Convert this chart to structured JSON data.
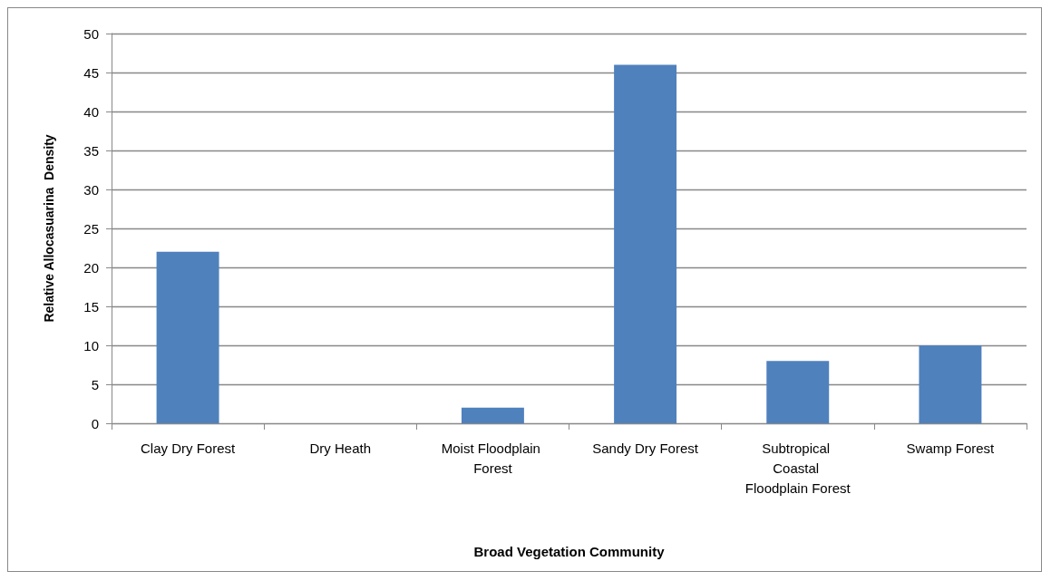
{
  "chart_data": {
    "type": "bar",
    "xlabel": "Broad Vegetation Community",
    "ylabel": "Relative Allocasuarina  Density",
    "categories": [
      "Clay Dry Forest",
      "Dry Heath",
      "Moist Floodplain Forest",
      "Sandy Dry Forest",
      "Subtropical Coastal Floodplain Forest",
      "Swamp Forest"
    ],
    "values": [
      22,
      0,
      2,
      46,
      8,
      10
    ],
    "color": "#4f81bd",
    "ylim": [
      0,
      50
    ],
    "yticks": [
      0,
      5,
      10,
      15,
      20,
      25,
      30,
      35,
      40,
      45,
      50
    ],
    "grid": "y"
  }
}
